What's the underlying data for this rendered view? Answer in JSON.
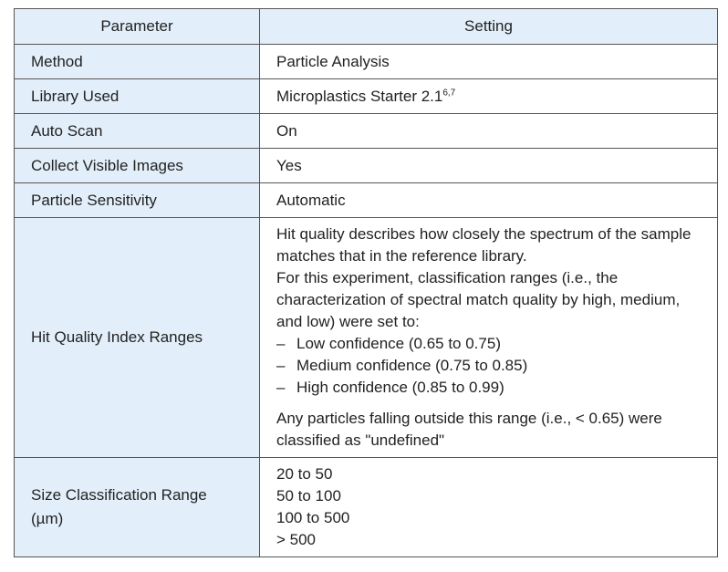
{
  "headers": {
    "parameter": "Parameter",
    "setting": "Setting"
  },
  "rows": [
    {
      "parameter": "Method",
      "setting": "Particle Analysis"
    },
    {
      "parameter": "Library Used",
      "setting": "Microplastics Starter 2.1",
      "sup": "6,7"
    },
    {
      "parameter": "Auto Scan",
      "setting": "On"
    },
    {
      "parameter": "Collect Visible Images",
      "setting": "Yes"
    },
    {
      "parameter": "Particle Sensitivity",
      "setting": "Automatic"
    }
  ],
  "hit_quality": {
    "parameter": "Hit Quality Index Ranges",
    "intro1": "Hit quality describes how closely the spectrum of the sample matches that in the reference library.",
    "intro2": "For this experiment, classification ranges (i.e., the characterization of spectral match quality by high, medium, and low) were set to:",
    "dash": "–",
    "items": [
      "Low confidence (0.65 to 0.75)",
      "Medium confidence (0.75 to 0.85)",
      "High confidence (0.85 to 0.99)"
    ],
    "note": "Any particles falling outside this range (i.e., < 0.65) were classified as \"undefined\""
  },
  "size": {
    "parameter": "Size Classification Range (µm)",
    "ranges": [
      "20 to 50",
      "50 to 100",
      "100 to 500",
      "> 500"
    ]
  }
}
